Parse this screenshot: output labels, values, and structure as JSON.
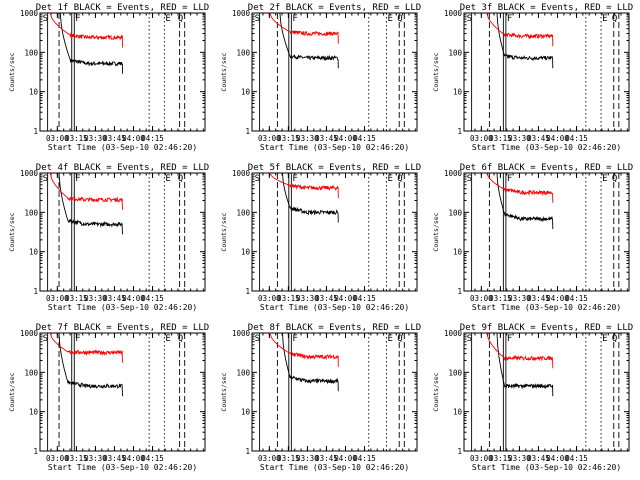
{
  "figure": {
    "xlabel": "Start Time (03-Sep-10 02:46:20)",
    "ylabel": "Counts/sec",
    "marker_labels": {
      "S": "S",
      "F": "F",
      "E": "E",
      "Q": "Q"
    }
  },
  "chart_data": [
    {
      "type": "line",
      "title": "Det 1f BLACK = Events, RED = LLD",
      "x_ticks": [
        "03:00",
        "03:15",
        "03:30",
        "03:45",
        "04:00",
        "04:15"
      ],
      "y_ticks": [
        "1",
        "10",
        "100",
        "1000"
      ],
      "ylim": [
        1,
        1000
      ],
      "xlim_minutes": [
        0,
        130
      ],
      "log_y": true,
      "series": [
        {
          "name": "BLACK = Events",
          "color": "#000000",
          "start": [
            16,
            1000
          ],
          "knee": [
            24,
            62
          ],
          "level": 52,
          "end_minute": 65
        },
        {
          "name": "RED = LLD",
          "color": "#ff0000",
          "start": [
            8,
            1000
          ],
          "knee": [
            24,
            270
          ],
          "level": 240,
          "end_minute": 65
        }
      ],
      "markers": {
        "S": 6,
        "dash1": 15,
        "F1": 25,
        "F2": 27,
        "dot": 86,
        "E": 98,
        "dash2": 110,
        "Q": 114
      }
    },
    {
      "type": "line",
      "title": "Det 2f BLACK = Events, RED = LLD",
      "x_ticks": [
        "03:00",
        "03:15",
        "03:30",
        "03:45",
        "04:00",
        "04:15"
      ],
      "y_ticks": [
        "1",
        "10",
        "100",
        "1000"
      ],
      "ylim": [
        1,
        1000
      ],
      "xlim_minutes": [
        0,
        130
      ],
      "log_y": true,
      "series": [
        {
          "name": "BLACK = Events",
          "color": "#000000",
          "start": [
            22,
            1000
          ],
          "knee": [
            30,
            80
          ],
          "level": 72,
          "end_minute": 68
        },
        {
          "name": "RED = LLD",
          "color": "#ff0000",
          "start": [
            14,
            1000
          ],
          "knee": [
            30,
            330
          ],
          "level": 300,
          "end_minute": 68
        }
      ],
      "markers": {
        "S": 6,
        "dash1": 20,
        "F1": 29,
        "F2": 31,
        "dot": 92,
        "E": 106,
        "dash2": 116,
        "Q": 120
      }
    },
    {
      "type": "line",
      "title": "Det 3f BLACK = Events, RED = LLD",
      "x_ticks": [
        "03:00",
        "03:15",
        "03:30",
        "03:45",
        "04:00",
        "04:15"
      ],
      "y_ticks": [
        "1",
        "10",
        "100",
        "1000"
      ],
      "ylim": [
        1,
        1000
      ],
      "xlim_minutes": [
        0,
        130
      ],
      "log_y": true,
      "series": [
        {
          "name": "BLACK = Events",
          "color": "#000000",
          "start": [
            26,
            1000
          ],
          "knee": [
            32,
            80
          ],
          "level": 72,
          "end_minute": 70
        },
        {
          "name": "RED = LLD",
          "color": "#ff0000",
          "start": [
            18,
            1000
          ],
          "knee": [
            32,
            280
          ],
          "level": 260,
          "end_minute": 70
        }
      ],
      "markers": {
        "S": 6,
        "dash1": 20,
        "F1": 31,
        "F2": 33,
        "dot": 96,
        "E": 108,
        "dash2": 118,
        "Q": 122
      }
    },
    {
      "type": "line",
      "title": "Det 4f BLACK = Events, RED = LLD",
      "x_ticks": [
        "03:00",
        "03:15",
        "03:30",
        "03:45",
        "04:00",
        "04:15"
      ],
      "y_ticks": [
        "1",
        "10",
        "100",
        "1000"
      ],
      "ylim": [
        1,
        1000
      ],
      "xlim_minutes": [
        0,
        130
      ],
      "log_y": true,
      "series": [
        {
          "name": "BLACK = Events",
          "color": "#000000",
          "start": [
            15,
            1000
          ],
          "knee": [
            22,
            62
          ],
          "level": 50,
          "end_minute": 65
        },
        {
          "name": "RED = LLD",
          "color": "#ff0000",
          "start": [
            8,
            1000
          ],
          "knee": [
            22,
            230
          ],
          "level": 210,
          "end_minute": 65
        }
      ],
      "markers": {
        "S": 6,
        "dash1": 15,
        "F1": 25,
        "F2": 27,
        "dot": 86,
        "E": 98,
        "dash2": 110,
        "Q": 114
      }
    },
    {
      "type": "line",
      "title": "Det 5f BLACK = Events, RED = LLD",
      "x_ticks": [
        "03:00",
        "03:15",
        "03:30",
        "03:45",
        "04:00",
        "04:15"
      ],
      "y_ticks": [
        "1",
        "10",
        "100",
        "1000"
      ],
      "ylim": [
        1,
        1000
      ],
      "xlim_minutes": [
        0,
        130
      ],
      "log_y": true,
      "series": [
        {
          "name": "BLACK = Events",
          "color": "#000000",
          "start": [
            24,
            1000
          ],
          "knee": [
            30,
            130
          ],
          "level": 100,
          "end_minute": 68
        },
        {
          "name": "RED = LLD",
          "color": "#ff0000",
          "start": [
            14,
            1000
          ],
          "knee": [
            30,
            480
          ],
          "level": 420,
          "end_minute": 68
        }
      ],
      "markers": {
        "S": 6,
        "dash1": 20,
        "F1": 29,
        "F2": 31,
        "dot": 92,
        "E": 106,
        "dash2": 116,
        "Q": 120
      }
    },
    {
      "type": "line",
      "title": "Det 6f BLACK = Events, RED = LLD",
      "x_ticks": [
        "03:00",
        "03:15",
        "03:30",
        "03:45",
        "04:00",
        "04:15"
      ],
      "y_ticks": [
        "1",
        "10",
        "100",
        "1000"
      ],
      "ylim": [
        1,
        1000
      ],
      "xlim_minutes": [
        0,
        130
      ],
      "log_y": true,
      "series": [
        {
          "name": "BLACK = Events",
          "color": "#000000",
          "start": [
            26,
            1000
          ],
          "knee": [
            32,
            90
          ],
          "level": 68,
          "end_minute": 70
        },
        {
          "name": "RED = LLD",
          "color": "#ff0000",
          "start": [
            18,
            1000
          ],
          "knee": [
            32,
            380
          ],
          "level": 320,
          "end_minute": 70
        }
      ],
      "markers": {
        "S": 6,
        "dash1": 20,
        "F1": 31,
        "F2": 33,
        "dot": 96,
        "E": 108,
        "dash2": 118,
        "Q": 122
      }
    },
    {
      "type": "line",
      "title": "Det 7f BLACK = Events, RED = LLD",
      "x_ticks": [
        "03:00",
        "03:15",
        "03:30",
        "03:45",
        "04:00",
        "04:15"
      ],
      "y_ticks": [
        "1",
        "10",
        "100",
        "1000"
      ],
      "ylim": [
        1,
        1000
      ],
      "xlim_minutes": [
        0,
        130
      ],
      "log_y": true,
      "series": [
        {
          "name": "BLACK = Events",
          "color": "#000000",
          "start": [
            15,
            1000
          ],
          "knee": [
            22,
            55
          ],
          "level": 45,
          "end_minute": 65
        },
        {
          "name": "RED = LLD",
          "color": "#ff0000",
          "start": [
            8,
            1000
          ],
          "knee": [
            22,
            330
          ],
          "level": 320,
          "end_minute": 65
        }
      ],
      "markers": {
        "S": 6,
        "dash1": 15,
        "F1": 25,
        "F2": 27,
        "dot": 86,
        "E": 98,
        "dash2": 110,
        "Q": 114
      }
    },
    {
      "type": "line",
      "title": "Det 8f BLACK = Events, RED = LLD",
      "x_ticks": [
        "03:00",
        "03:15",
        "03:30",
        "03:45",
        "04:00",
        "04:15"
      ],
      "y_ticks": [
        "1",
        "10",
        "100",
        "1000"
      ],
      "ylim": [
        1,
        1000
      ],
      "xlim_minutes": [
        0,
        130
      ],
      "log_y": true,
      "series": [
        {
          "name": "BLACK = Events",
          "color": "#000000",
          "start": [
            24,
            1000
          ],
          "knee": [
            30,
            75
          ],
          "level": 60,
          "end_minute": 68
        },
        {
          "name": "RED = LLD",
          "color": "#ff0000",
          "start": [
            14,
            1000
          ],
          "knee": [
            30,
            300
          ],
          "level": 250,
          "end_minute": 68
        }
      ],
      "markers": {
        "S": 6,
        "dash1": 20,
        "F1": 29,
        "F2": 31,
        "dot": 92,
        "E": 106,
        "dash2": 116,
        "Q": 120
      }
    },
    {
      "type": "line",
      "title": "Det 9f BLACK = Events, RED = LLD",
      "x_ticks": [
        "03:00",
        "03:15",
        "03:30",
        "03:45",
        "04:00",
        "04:15"
      ],
      "y_ticks": [
        "1",
        "10",
        "100",
        "1000"
      ],
      "ylim": [
        1,
        1000
      ],
      "xlim_minutes": [
        0,
        130
      ],
      "log_y": true,
      "series": [
        {
          "name": "BLACK = Events",
          "color": "#000000",
          "start": [
            26,
            1000
          ],
          "knee": [
            32,
            45
          ],
          "level": 45,
          "end_minute": 70
        },
        {
          "name": "RED = LLD",
          "color": "#ff0000",
          "start": [
            18,
            1000
          ],
          "knee": [
            32,
            230
          ],
          "level": 230,
          "end_minute": 70
        }
      ],
      "markers": {
        "S": 6,
        "dash1": 20,
        "F1": 31,
        "F2": 33,
        "dot": 96,
        "E": 108,
        "dash2": 118,
        "Q": 122
      }
    }
  ]
}
